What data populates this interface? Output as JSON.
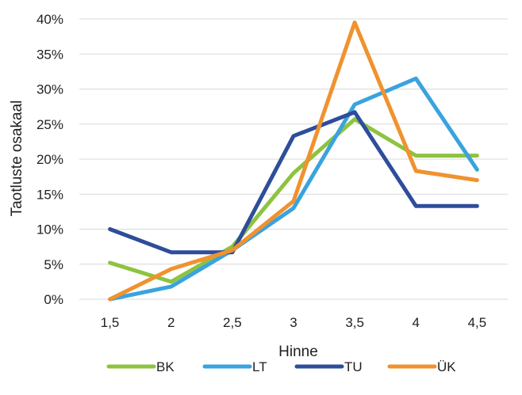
{
  "chart_data": {
    "type": "line",
    "xlabel": "Hinne",
    "ylabel": "Taotluste osakaal",
    "categories": [
      "1,5",
      "2",
      "2,5",
      "3",
      "3,5",
      "4",
      "4,5"
    ],
    "y_ticks": [
      "0%",
      "5%",
      "10%",
      "15%",
      "20%",
      "25%",
      "30%",
      "35%",
      "40%"
    ],
    "ylim": [
      0,
      40
    ],
    "y_unit": "%",
    "grid": "horizontal",
    "legend_position": "bottom",
    "series": [
      {
        "name": "BK",
        "color": "#8DC33F",
        "values": [
          5.2,
          2.5,
          7.5,
          18.0,
          25.7,
          20.5,
          20.5
        ]
      },
      {
        "name": "LT",
        "color": "#3AA3DE",
        "values": [
          0.0,
          1.8,
          7.0,
          13.0,
          27.8,
          31.5,
          18.5
        ]
      },
      {
        "name": "TU",
        "color": "#2E4D9A",
        "values": [
          10.0,
          6.7,
          6.7,
          23.3,
          26.7,
          13.3,
          13.3
        ]
      },
      {
        "name": "ÜK",
        "color": "#F0922F",
        "values": [
          0.0,
          4.3,
          7.0,
          14.0,
          39.5,
          18.3,
          17.0
        ]
      }
    ]
  }
}
